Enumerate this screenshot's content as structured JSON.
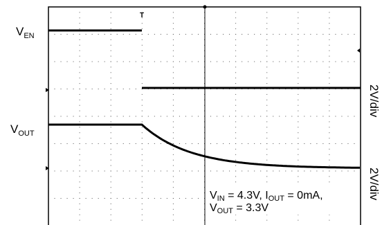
{
  "chart_data": {
    "type": "line",
    "series": [
      {
        "name": "VEN",
        "label_main": "V",
        "label_sub": "EN"
      },
      {
        "name": "VOUT",
        "label_main": "V",
        "label_sub": "OUT"
      }
    ],
    "scales": [
      {
        "text": "2V/div"
      },
      {
        "text": "2V/div"
      }
    ],
    "annotation": {
      "line1": {
        "v": "V",
        "v_sub": "IN",
        "v_rest": " = 4.3V, ",
        "i": "I",
        "i_sub": "OUT",
        "i_rest": " = 0mA,"
      },
      "line2": {
        "v": "V",
        "v_sub": "OUT",
        "v_rest": " = 3.3V"
      }
    },
    "grid": true,
    "x_divisions": 10,
    "y_divisions": 8
  }
}
